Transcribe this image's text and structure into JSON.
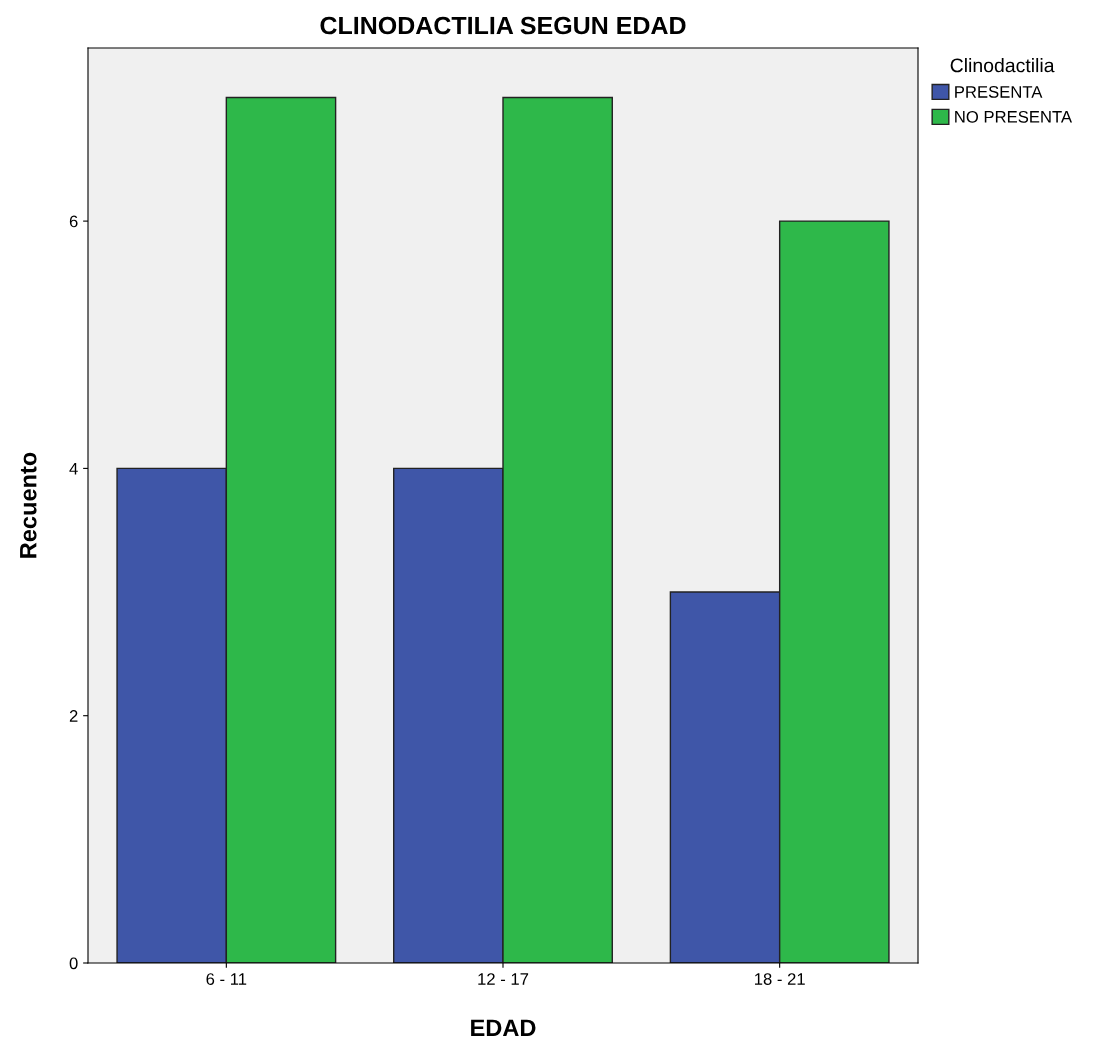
{
  "chart_data": {
    "type": "bar",
    "title": "CLINODACTILIA SEGUN EDAD",
    "xlabel": "EDAD",
    "ylabel": "Recuento",
    "legend_title": "Clinodactilia",
    "categories": [
      "6 - 11",
      "12 - 17",
      "18 - 21"
    ],
    "series": [
      {
        "name": "PRESENTA",
        "color": "#3f56a8",
        "values": [
          4,
          4,
          3
        ]
      },
      {
        "name": "NO PRESENTA",
        "color": "#2eb84a",
        "values": [
          7,
          7,
          6
        ]
      }
    ],
    "ylim": [
      0,
      7.4
    ],
    "yticks": [
      0,
      2,
      4,
      6
    ],
    "grid": false,
    "legend": "top right"
  }
}
